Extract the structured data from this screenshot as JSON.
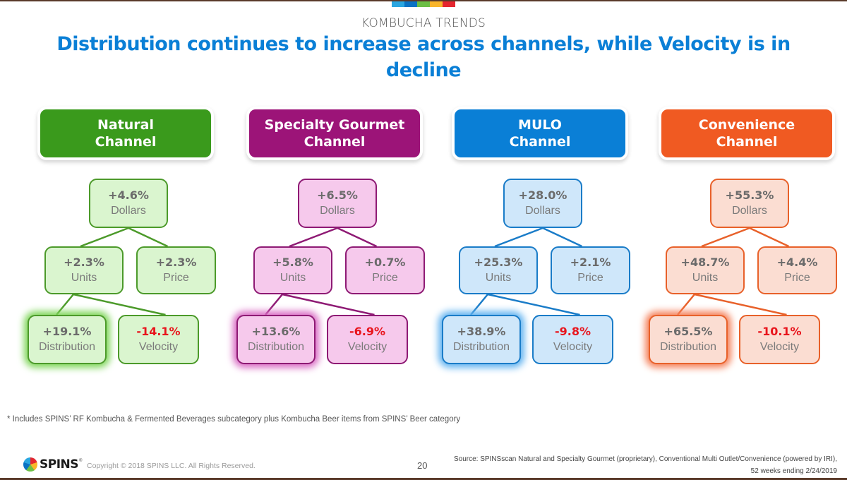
{
  "header": {
    "kicker": "KOMBUCHA TRENDS",
    "title": "Distribution continues to increase across channels, while Velocity is in decline",
    "color_strip": [
      "#2ba6e0",
      "#0a72c4",
      "#6cbf45",
      "#f9b52b",
      "#e4262f"
    ]
  },
  "channels": [
    {
      "name_line1": "Natural",
      "name_line2": "Channel",
      "colors": {
        "header": "#3a9a1c",
        "border": "#4c9a2a",
        "fill": "#daf5cf",
        "glow": "#7fd65a"
      },
      "dollars": {
        "value": "+4.6%",
        "label": "Dollars"
      },
      "units": {
        "value": "+2.3%",
        "label": "Units"
      },
      "price": {
        "value": "+2.3%",
        "label": "Price"
      },
      "distribution": {
        "value": "+19.1%",
        "label": "Distribution"
      },
      "velocity": {
        "value": "-14.1%",
        "label": "Velocity"
      }
    },
    {
      "name_line1": "Specialty Gourmet",
      "name_line2": "Channel",
      "colors": {
        "header": "#9c1478",
        "border": "#8e1a74",
        "fill": "#f6c9ec",
        "glow": "#d96cc4"
      },
      "dollars": {
        "value": "+6.5%",
        "label": "Dollars"
      },
      "units": {
        "value": "+5.8%",
        "label": "Units"
      },
      "price": {
        "value": "+0.7%",
        "label": "Price"
      },
      "distribution": {
        "value": "+13.6%",
        "label": "Distribution"
      },
      "velocity": {
        "value": "-6.9%",
        "label": "Velocity"
      }
    },
    {
      "name_line1": "MULO",
      "name_line2": "Channel",
      "colors": {
        "header": "#0a7fd6",
        "border": "#1a7cc8",
        "fill": "#cfe7fa",
        "glow": "#62b3f0"
      },
      "dollars": {
        "value": "+28.0%",
        "label": "Dollars"
      },
      "units": {
        "value": "+25.3%",
        "label": "Units"
      },
      "price": {
        "value": "+2.1%",
        "label": "Price"
      },
      "distribution": {
        "value": "+38.9%",
        "label": "Distribution"
      },
      "velocity": {
        "value": "-9.8%",
        "label": "Velocity"
      }
    },
    {
      "name_line1": "Convenience",
      "name_line2": "Channel",
      "colors": {
        "header": "#f05a22",
        "border": "#e8612a",
        "fill": "#fbddd2",
        "glow": "#f5815a"
      },
      "dollars": {
        "value": "+55.3%",
        "label": "Dollars"
      },
      "units": {
        "value": "+48.7%",
        "label": "Units"
      },
      "price": {
        "value": "+4.4%",
        "label": "Price"
      },
      "distribution": {
        "value": "+65.5%",
        "label": "Distribution"
      },
      "velocity": {
        "value": "-10.1%",
        "label": "Velocity"
      }
    }
  ],
  "footnote": "* Includes SPINS’ RF Kombucha & Fermented Beverages subcategory plus Kombucha Beer items from SPINS’ Beer category",
  "footer": {
    "logo_text": "SPINS",
    "logo_tm": "®",
    "copyright": "Copyright © 2018 SPINS LLC. All Rights Reserved.",
    "page_number": "20",
    "source_line1": "Source: SPINSscan Natural and Specialty Gourmet (proprietary), Conventional Multi Outlet/Convenience (powered by IRI),",
    "source_line2": "52 weeks ending 2/24/2019"
  }
}
